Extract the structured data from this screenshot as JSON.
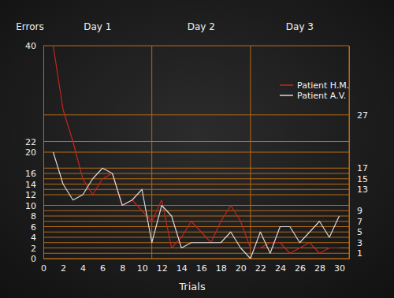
{
  "chart_data": {
    "type": "line",
    "y_label": "Errors",
    "x_label": "Trials",
    "annotations": [
      {
        "text": "Day 1",
        "x": [
          0,
          11
        ]
      },
      {
        "text": "Day 2",
        "x": [
          11,
          21
        ]
      },
      {
        "text": "Day 3",
        "x": [
          21,
          31
        ]
      }
    ],
    "x": [
      1,
      2,
      3,
      4,
      5,
      6,
      7,
      8,
      9,
      10,
      11,
      12,
      13,
      14,
      15,
      16,
      17,
      18,
      19,
      20,
      21,
      22,
      23,
      24,
      25,
      26,
      27,
      28,
      29,
      30
    ],
    "series": [
      {
        "name": "Patient H.M.",
        "color": "#c4261c",
        "values": [
          40,
          28,
          22,
          15,
          12,
          15,
          16,
          10,
          11,
          9,
          7,
          11,
          2,
          4,
          7,
          5,
          3,
          7,
          10,
          7,
          2,
          2,
          3,
          3,
          1,
          2,
          3,
          1,
          2,
          2
        ]
      },
      {
        "name": "Patient A.V.",
        "color": "#d9d9d9",
        "values": [
          20,
          14,
          11,
          12,
          15,
          17,
          16,
          10,
          11,
          13,
          3,
          10,
          8,
          2,
          3,
          3,
          3,
          3,
          5,
          2,
          0,
          5,
          1,
          6,
          6,
          3,
          5,
          7,
          4,
          8
        ]
      }
    ],
    "xlim": [
      0,
      31
    ],
    "xticks": [
      0,
      2,
      4,
      6,
      8,
      10,
      12,
      14,
      16,
      18,
      20,
      22,
      24,
      26,
      28,
      30
    ],
    "ylim": [
      0,
      40
    ],
    "yticks": [
      0,
      2,
      4,
      6,
      8,
      10,
      12,
      14,
      16,
      20,
      22,
      40
    ],
    "y2lim": [
      0,
      40
    ],
    "y2ticks": [
      1,
      3,
      5,
      7,
      9,
      13,
      15,
      17,
      27
    ],
    "grid": true,
    "legend": "upper right"
  }
}
